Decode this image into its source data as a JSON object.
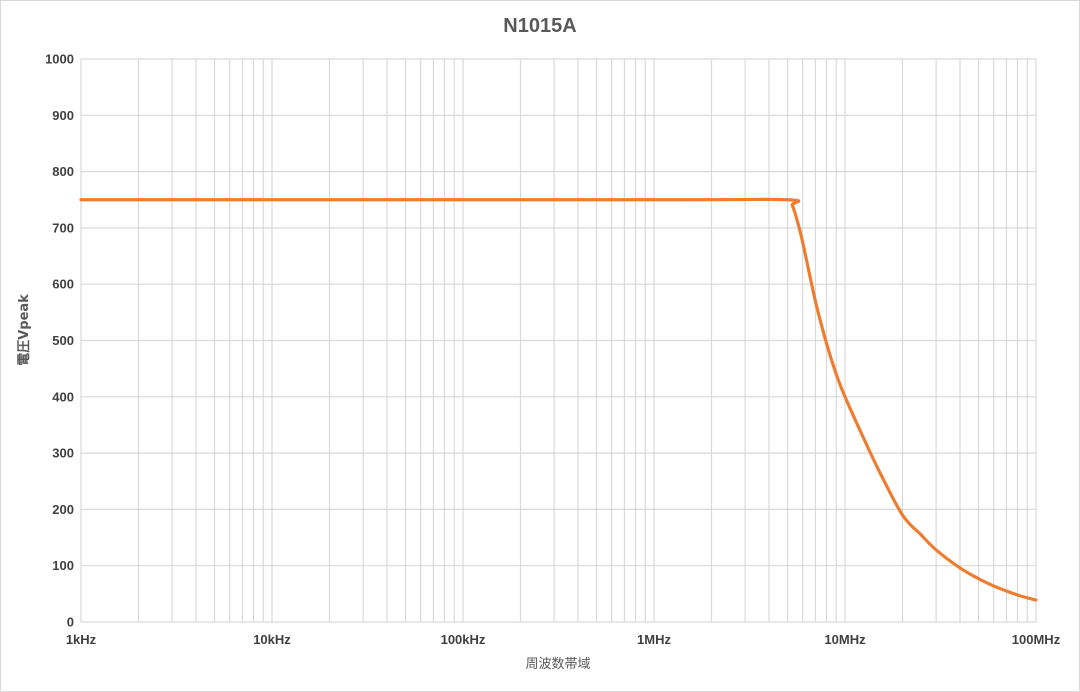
{
  "chart_data": {
    "type": "line",
    "title": "N1015A",
    "xlabel": "周波数帯域",
    "ylabel": "電圧Vpeak",
    "x_scale": "log",
    "xlim": [
      1000,
      100000000
    ],
    "ylim": [
      0,
      1000
    ],
    "grid": true,
    "legend": "none",
    "x_tick_labels": [
      "1kHz",
      "10kHz",
      "100kHz",
      "1MHz",
      "10MHz",
      "100MHz"
    ],
    "y_tick_labels": [
      "0",
      "100",
      "200",
      "300",
      "400",
      "500",
      "600",
      "700",
      "800",
      "900",
      "1000"
    ],
    "series": [
      {
        "color": "#ed7d31",
        "points": [
          {
            "x": 1000,
            "y": 750
          },
          {
            "x": 1000000,
            "y": 750
          },
          {
            "x": 5000000,
            "y": 750
          },
          {
            "x": 5300000,
            "y": 740
          },
          {
            "x": 5600000,
            "y": 715
          },
          {
            "x": 6000000,
            "y": 675
          },
          {
            "x": 7000000,
            "y": 570
          },
          {
            "x": 8000000,
            "y": 495
          },
          {
            "x": 9000000,
            "y": 440
          },
          {
            "x": 10000000,
            "y": 400
          },
          {
            "x": 12000000,
            "y": 340
          },
          {
            "x": 15000000,
            "y": 270
          },
          {
            "x": 20000000,
            "y": 190
          },
          {
            "x": 25000000,
            "y": 155
          },
          {
            "x": 30000000,
            "y": 128
          },
          {
            "x": 40000000,
            "y": 96
          },
          {
            "x": 50000000,
            "y": 77
          },
          {
            "x": 60000000,
            "y": 64
          },
          {
            "x": 70000000,
            "y": 55
          },
          {
            "x": 80000000,
            "y": 48
          },
          {
            "x": 90000000,
            "y": 43
          },
          {
            "x": 100000000,
            "y": 39
          }
        ]
      }
    ]
  }
}
